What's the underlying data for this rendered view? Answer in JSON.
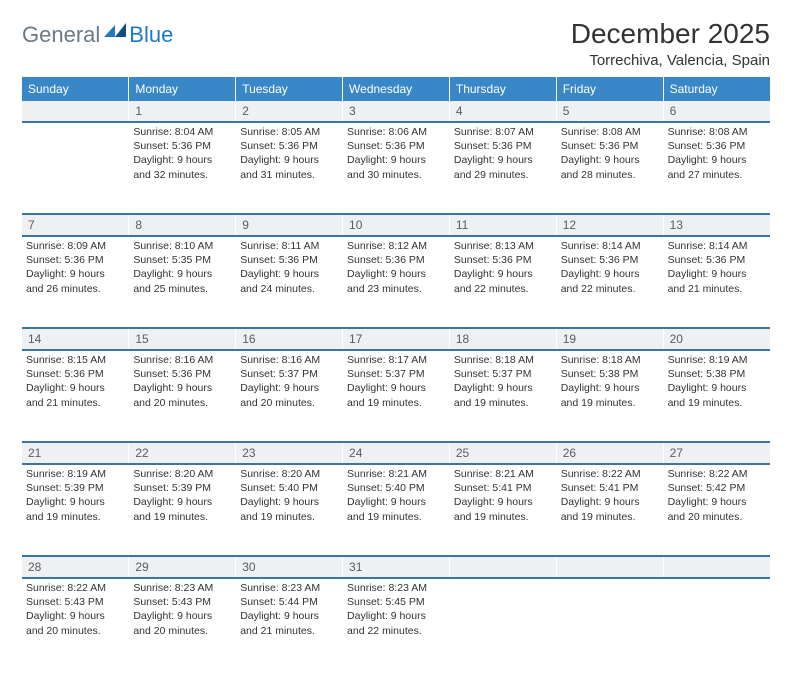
{
  "brand": {
    "general": "General",
    "blue": "Blue"
  },
  "header": {
    "title": "December 2025",
    "location": "Torrechiva, Valencia, Spain"
  },
  "colors": {
    "header_bg": "#3a87c7",
    "header_text": "#ffffff",
    "daynum_bg": "#eef0f1",
    "rule": "#3a76a5"
  },
  "dayNames": [
    "Sunday",
    "Monday",
    "Tuesday",
    "Wednesday",
    "Thursday",
    "Friday",
    "Saturday"
  ],
  "weeks": [
    [
      {
        "n": "",
        "sunrise": "",
        "sunset": "",
        "daylight": ""
      },
      {
        "n": "1",
        "sunrise": "Sunrise: 8:04 AM",
        "sunset": "Sunset: 5:36 PM",
        "daylight": "Daylight: 9 hours and 32 minutes."
      },
      {
        "n": "2",
        "sunrise": "Sunrise: 8:05 AM",
        "sunset": "Sunset: 5:36 PM",
        "daylight": "Daylight: 9 hours and 31 minutes."
      },
      {
        "n": "3",
        "sunrise": "Sunrise: 8:06 AM",
        "sunset": "Sunset: 5:36 PM",
        "daylight": "Daylight: 9 hours and 30 minutes."
      },
      {
        "n": "4",
        "sunrise": "Sunrise: 8:07 AM",
        "sunset": "Sunset: 5:36 PM",
        "daylight": "Daylight: 9 hours and 29 minutes."
      },
      {
        "n": "5",
        "sunrise": "Sunrise: 8:08 AM",
        "sunset": "Sunset: 5:36 PM",
        "daylight": "Daylight: 9 hours and 28 minutes."
      },
      {
        "n": "6",
        "sunrise": "Sunrise: 8:08 AM",
        "sunset": "Sunset: 5:36 PM",
        "daylight": "Daylight: 9 hours and 27 minutes."
      }
    ],
    [
      {
        "n": "7",
        "sunrise": "Sunrise: 8:09 AM",
        "sunset": "Sunset: 5:36 PM",
        "daylight": "Daylight: 9 hours and 26 minutes."
      },
      {
        "n": "8",
        "sunrise": "Sunrise: 8:10 AM",
        "sunset": "Sunset: 5:35 PM",
        "daylight": "Daylight: 9 hours and 25 minutes."
      },
      {
        "n": "9",
        "sunrise": "Sunrise: 8:11 AM",
        "sunset": "Sunset: 5:36 PM",
        "daylight": "Daylight: 9 hours and 24 minutes."
      },
      {
        "n": "10",
        "sunrise": "Sunrise: 8:12 AM",
        "sunset": "Sunset: 5:36 PM",
        "daylight": "Daylight: 9 hours and 23 minutes."
      },
      {
        "n": "11",
        "sunrise": "Sunrise: 8:13 AM",
        "sunset": "Sunset: 5:36 PM",
        "daylight": "Daylight: 9 hours and 22 minutes."
      },
      {
        "n": "12",
        "sunrise": "Sunrise: 8:14 AM",
        "sunset": "Sunset: 5:36 PM",
        "daylight": "Daylight: 9 hours and 22 minutes."
      },
      {
        "n": "13",
        "sunrise": "Sunrise: 8:14 AM",
        "sunset": "Sunset: 5:36 PM",
        "daylight": "Daylight: 9 hours and 21 minutes."
      }
    ],
    [
      {
        "n": "14",
        "sunrise": "Sunrise: 8:15 AM",
        "sunset": "Sunset: 5:36 PM",
        "daylight": "Daylight: 9 hours and 21 minutes."
      },
      {
        "n": "15",
        "sunrise": "Sunrise: 8:16 AM",
        "sunset": "Sunset: 5:36 PM",
        "daylight": "Daylight: 9 hours and 20 minutes."
      },
      {
        "n": "16",
        "sunrise": "Sunrise: 8:16 AM",
        "sunset": "Sunset: 5:37 PM",
        "daylight": "Daylight: 9 hours and 20 minutes."
      },
      {
        "n": "17",
        "sunrise": "Sunrise: 8:17 AM",
        "sunset": "Sunset: 5:37 PM",
        "daylight": "Daylight: 9 hours and 19 minutes."
      },
      {
        "n": "18",
        "sunrise": "Sunrise: 8:18 AM",
        "sunset": "Sunset: 5:37 PM",
        "daylight": "Daylight: 9 hours and 19 minutes."
      },
      {
        "n": "19",
        "sunrise": "Sunrise: 8:18 AM",
        "sunset": "Sunset: 5:38 PM",
        "daylight": "Daylight: 9 hours and 19 minutes."
      },
      {
        "n": "20",
        "sunrise": "Sunrise: 8:19 AM",
        "sunset": "Sunset: 5:38 PM",
        "daylight": "Daylight: 9 hours and 19 minutes."
      }
    ],
    [
      {
        "n": "21",
        "sunrise": "Sunrise: 8:19 AM",
        "sunset": "Sunset: 5:39 PM",
        "daylight": "Daylight: 9 hours and 19 minutes."
      },
      {
        "n": "22",
        "sunrise": "Sunrise: 8:20 AM",
        "sunset": "Sunset: 5:39 PM",
        "daylight": "Daylight: 9 hours and 19 minutes."
      },
      {
        "n": "23",
        "sunrise": "Sunrise: 8:20 AM",
        "sunset": "Sunset: 5:40 PM",
        "daylight": "Daylight: 9 hours and 19 minutes."
      },
      {
        "n": "24",
        "sunrise": "Sunrise: 8:21 AM",
        "sunset": "Sunset: 5:40 PM",
        "daylight": "Daylight: 9 hours and 19 minutes."
      },
      {
        "n": "25",
        "sunrise": "Sunrise: 8:21 AM",
        "sunset": "Sunset: 5:41 PM",
        "daylight": "Daylight: 9 hours and 19 minutes."
      },
      {
        "n": "26",
        "sunrise": "Sunrise: 8:22 AM",
        "sunset": "Sunset: 5:41 PM",
        "daylight": "Daylight: 9 hours and 19 minutes."
      },
      {
        "n": "27",
        "sunrise": "Sunrise: 8:22 AM",
        "sunset": "Sunset: 5:42 PM",
        "daylight": "Daylight: 9 hours and 20 minutes."
      }
    ],
    [
      {
        "n": "28",
        "sunrise": "Sunrise: 8:22 AM",
        "sunset": "Sunset: 5:43 PM",
        "daylight": "Daylight: 9 hours and 20 minutes."
      },
      {
        "n": "29",
        "sunrise": "Sunrise: 8:23 AM",
        "sunset": "Sunset: 5:43 PM",
        "daylight": "Daylight: 9 hours and 20 minutes."
      },
      {
        "n": "30",
        "sunrise": "Sunrise: 8:23 AM",
        "sunset": "Sunset: 5:44 PM",
        "daylight": "Daylight: 9 hours and 21 minutes."
      },
      {
        "n": "31",
        "sunrise": "Sunrise: 8:23 AM",
        "sunset": "Sunset: 5:45 PM",
        "daylight": "Daylight: 9 hours and 22 minutes."
      },
      {
        "n": "",
        "sunrise": "",
        "sunset": "",
        "daylight": ""
      },
      {
        "n": "",
        "sunrise": "",
        "sunset": "",
        "daylight": ""
      },
      {
        "n": "",
        "sunrise": "",
        "sunset": "",
        "daylight": ""
      }
    ]
  ]
}
